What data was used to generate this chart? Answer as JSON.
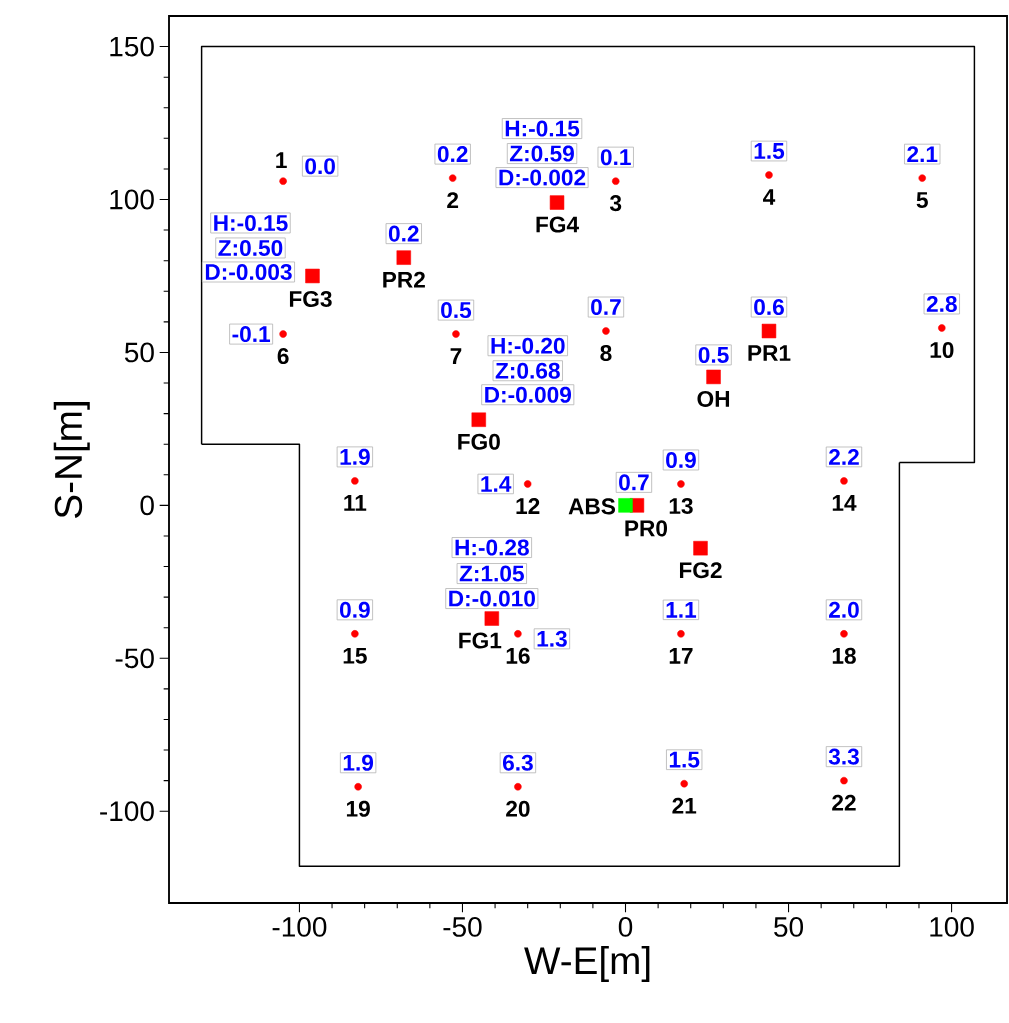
{
  "chart_data": {
    "type": "scatter",
    "xlabel": "W-E[m]",
    "ylabel": "S-N[m]",
    "xlim": [
      -140,
      117
    ],
    "ylim": [
      -130,
      160
    ],
    "xticks": [
      -100,
      -50,
      0,
      50,
      100
    ],
    "yticks": [
      -100,
      -50,
      0,
      50,
      100,
      150
    ],
    "series": [
      {
        "type": "line",
        "color": "#000000",
        "marker": "none",
        "x": [
          -130,
          -130,
          107,
          107,
          84
        ],
        "values": [
          20,
          150,
          150,
          14,
          14
        ]
      },
      {
        "type": "line",
        "color": "#000000",
        "marker": "none",
        "x": [
          84,
          84,
          -100,
          -100,
          -130
        ],
        "values": [
          14,
          -118,
          -118,
          20,
          20
        ]
      },
      {
        "color": "#ff0000",
        "marker": "circle",
        "x": [
          -105,
          -53,
          -3,
          44,
          91,
          -105,
          -52,
          -6,
          97,
          -83,
          -30,
          17,
          67,
          -83,
          -33,
          17,
          67,
          -82,
          -33,
          18,
          67
        ],
        "values": [
          106,
          107,
          106,
          108,
          107,
          56,
          56,
          57,
          58,
          8,
          7,
          7,
          8,
          -42,
          -42,
          -42,
          -42,
          -92,
          -92,
          -91,
          -90
        ]
      },
      {
        "color": "#ff0000",
        "marker": "square",
        "x": [
          -21,
          -68,
          -96,
          44,
          27,
          -45,
          3.5,
          23,
          -41
        ],
        "values": [
          99,
          81,
          75,
          57,
          42,
          28,
          0,
          -14,
          -37
        ]
      },
      {
        "color": "#00ff00",
        "marker": "square",
        "x": [
          0
        ],
        "values": [
          0
        ]
      }
    ],
    "annotations": [
      {
        "text": "1",
        "x": -105,
        "y": 106
      },
      {
        "text": "0.0",
        "x": -105,
        "y": 106
      },
      {
        "text": "2",
        "x": -53,
        "y": 107
      },
      {
        "text": "0.2",
        "x": -53,
        "y": 107
      },
      {
        "text": "3",
        "x": -3,
        "y": 106
      },
      {
        "text": "0.1",
        "x": -3,
        "y": 106
      },
      {
        "text": "4",
        "x": 44,
        "y": 108
      },
      {
        "text": "1.5",
        "x": 44,
        "y": 108
      },
      {
        "text": "5",
        "x": 91,
        "y": 107
      },
      {
        "text": "2.1",
        "x": 91,
        "y": 107
      },
      {
        "text": "6",
        "x": -105,
        "y": 56
      },
      {
        "text": "-0.1",
        "x": -105,
        "y": 56
      },
      {
        "text": "7",
        "x": -52,
        "y": 56
      },
      {
        "text": "0.5",
        "x": -52,
        "y": 56
      },
      {
        "text": "8",
        "x": -6,
        "y": 57
      },
      {
        "text": "0.7",
        "x": -6,
        "y": 57
      },
      {
        "text": "10",
        "x": 97,
        "y": 58
      },
      {
        "text": "2.8",
        "x": 97,
        "y": 58
      },
      {
        "text": "11",
        "x": -83,
        "y": 8
      },
      {
        "text": "1.9",
        "x": -83,
        "y": 8
      },
      {
        "text": "12",
        "x": -30,
        "y": 7
      },
      {
        "text": "1.4",
        "x": -30,
        "y": 7
      },
      {
        "text": "13",
        "x": 17,
        "y": 7
      },
      {
        "text": "0.9",
        "x": 17,
        "y": 7
      },
      {
        "text": "14",
        "x": 67,
        "y": 8
      },
      {
        "text": "2.2",
        "x": 67,
        "y": 8
      },
      {
        "text": "15",
        "x": -83,
        "y": -42
      },
      {
        "text": "0.9",
        "x": -83,
        "y": -42
      },
      {
        "text": "16",
        "x": -33,
        "y": -42
      },
      {
        "text": "1.3",
        "x": -33,
        "y": -42
      },
      {
        "text": "17",
        "x": 17,
        "y": -42
      },
      {
        "text": "1.1",
        "x": 17,
        "y": -42
      },
      {
        "text": "18",
        "x": 67,
        "y": -42
      },
      {
        "text": "2.0",
        "x": 67,
        "y": -42
      },
      {
        "text": "19",
        "x": -82,
        "y": -92
      },
      {
        "text": "1.9",
        "x": -82,
        "y": -92
      },
      {
        "text": "20",
        "x": -33,
        "y": -92
      },
      {
        "text": "6.3",
        "x": -33,
        "y": -92
      },
      {
        "text": "21",
        "x": 18,
        "y": -91
      },
      {
        "text": "1.5",
        "x": 18,
        "y": -91
      },
      {
        "text": "22",
        "x": 67,
        "y": -90
      },
      {
        "text": "3.3",
        "x": 67,
        "y": -90
      },
      {
        "text": "FG4",
        "x": -21,
        "y": 99
      },
      {
        "text": "H:-0.15",
        "x": -21,
        "y": 99
      },
      {
        "text": "Z:0.59",
        "x": -21,
        "y": 99
      },
      {
        "text": "D:-0.002",
        "x": -21,
        "y": 99
      },
      {
        "text": "PR2",
        "x": -68,
        "y": 81
      },
      {
        "text": "0.2",
        "x": -68,
        "y": 81
      },
      {
        "text": "FG3",
        "x": -96,
        "y": 75
      },
      {
        "text": "H:-0.15",
        "x": -96,
        "y": 75
      },
      {
        "text": "Z:0.50",
        "x": -96,
        "y": 75
      },
      {
        "text": "D:-0.003",
        "x": -96,
        "y": 75
      },
      {
        "text": "PR1",
        "x": 44,
        "y": 57
      },
      {
        "text": "0.6",
        "x": 44,
        "y": 57
      },
      {
        "text": "OH",
        "x": 27,
        "y": 42
      },
      {
        "text": "0.5",
        "x": 27,
        "y": 42
      },
      {
        "text": "FG0",
        "x": -45,
        "y": 28
      },
      {
        "text": "H:-0.20",
        "x": -45,
        "y": 28
      },
      {
        "text": "Z:0.68",
        "x": -45,
        "y": 28
      },
      {
        "text": "D:-0.009",
        "x": -45,
        "y": 28
      },
      {
        "text": "ABS",
        "x": 0,
        "y": 0
      },
      {
        "text": "PR0",
        "x": 3.5,
        "y": 0
      },
      {
        "text": "0.7",
        "x": 3.5,
        "y": 0
      },
      {
        "text": "FG2",
        "x": 23,
        "y": -14
      },
      {
        "text": "FG1",
        "x": -41,
        "y": -37
      },
      {
        "text": "H:-0.28",
        "x": -41,
        "y": -37
      },
      {
        "text": "Z:1.05",
        "x": -41,
        "y": -37
      },
      {
        "text": "D:-0.010",
        "x": -41,
        "y": -37
      }
    ]
  }
}
